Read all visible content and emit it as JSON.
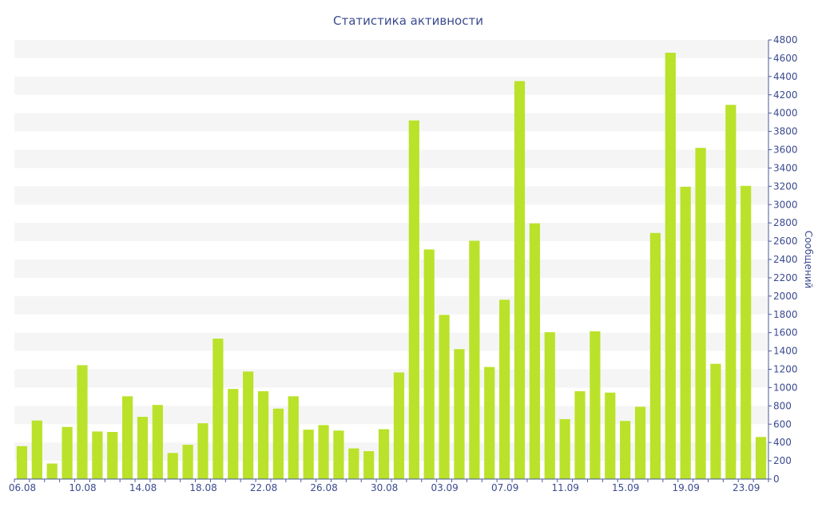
{
  "chart_data": {
    "type": "bar",
    "title": "Статистика активности",
    "ylabel": "Сообщений",
    "xlabel": "",
    "ylim": [
      0,
      4800
    ],
    "y_ticks": [
      0,
      200,
      400,
      600,
      800,
      1000,
      1200,
      1400,
      1600,
      1800,
      2000,
      2200,
      2400,
      2600,
      2800,
      3000,
      3200,
      3400,
      3600,
      3800,
      4000,
      4200,
      4400,
      4600,
      4800
    ],
    "y_axis_side": "right",
    "grid": "alternating horizontal bands",
    "categories": [
      "06.08",
      "07.08",
      "08.08",
      "09.08",
      "10.08",
      "11.08",
      "12.08",
      "13.08",
      "14.08",
      "15.08",
      "16.08",
      "17.08",
      "18.08",
      "19.08",
      "20.08",
      "21.08",
      "22.08",
      "23.08",
      "24.08",
      "25.08",
      "26.08",
      "27.08",
      "28.08",
      "29.08",
      "30.08",
      "31.08",
      "01.09",
      "02.09",
      "03.09",
      "04.09",
      "05.09",
      "06.09",
      "07.09",
      "08.09",
      "09.09",
      "10.09",
      "11.09",
      "12.09",
      "13.09",
      "14.09",
      "15.09",
      "16.09",
      "17.09",
      "18.09",
      "19.09",
      "20.09",
      "21.09",
      "22.09",
      "23.09",
      "24.09"
    ],
    "x_tick_labels": [
      "06.08",
      "10.08",
      "14.08",
      "18.08",
      "22.08",
      "26.08",
      "30.08",
      "03.09",
      "07.09",
      "11.09",
      "15.09",
      "19.09",
      "23.09"
    ],
    "values": [
      360,
      640,
      170,
      570,
      1245,
      520,
      515,
      905,
      680,
      810,
      285,
      375,
      610,
      1535,
      985,
      1175,
      960,
      770,
      905,
      540,
      590,
      530,
      335,
      305,
      545,
      1165,
      3920,
      2510,
      1795,
      1420,
      2605,
      1225,
      1960,
      4350,
      2795,
      1605,
      655,
      960,
      1615,
      945,
      635,
      790,
      2690,
      4660,
      3195,
      3620,
      1260,
      4090,
      3205,
      460
    ],
    "color": "#bae22a",
    "band_color": "#f5f5f5",
    "axis_color": "#4a5a9a",
    "text_color": "#3b4a8f"
  }
}
